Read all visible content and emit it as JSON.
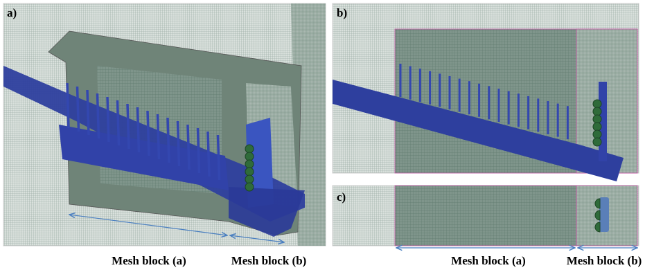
{
  "panel_a": {
    "label": "a)",
    "captions": [
      "Mesh block (a)",
      "Mesh block (b)"
    ]
  },
  "panel_b": {
    "label": "b)"
  },
  "panel_c": {
    "label": "c)",
    "captions": [
      "Mesh block (a)",
      "Mesh block (b)"
    ]
  }
}
